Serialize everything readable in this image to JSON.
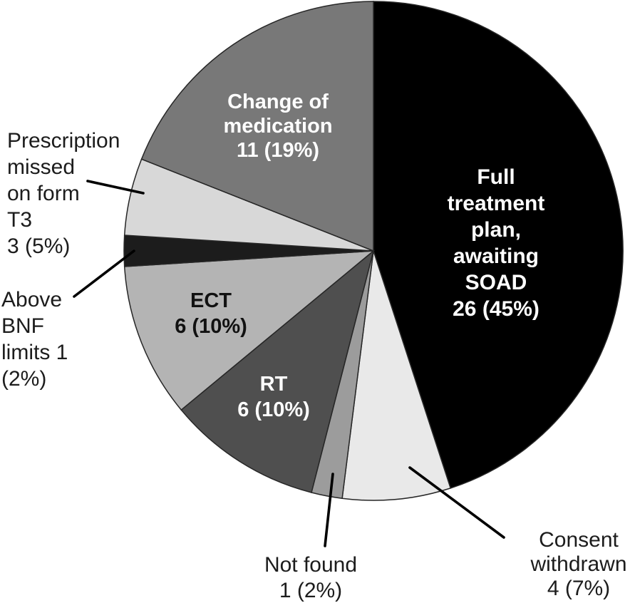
{
  "figure": {
    "background": "#ffffff"
  },
  "chart_data": {
    "type": "pie",
    "title": "",
    "value_format": "count (percent)",
    "total": 58,
    "start_angle_deg": 0,
    "direction": "clockwise",
    "legend": "none",
    "outline_color": "#262626",
    "slices": [
      {
        "id": "full-treatment",
        "label": "Full treatment plan, awaiting SOAD",
        "value": 26,
        "pct": 45,
        "color": "#000000",
        "text_color": "#ffffff",
        "display": "Full treatment\nplan, awaiting\nSOAD\n26 (45%)"
      },
      {
        "id": "consent-withdrawn",
        "label": "Consent withdrawn",
        "value": 4,
        "pct": 7,
        "color": "#e9e9e9",
        "text_color": "#1c1c1c",
        "display": "Consent\nwithdrawn\n4 (7%)"
      },
      {
        "id": "not-found",
        "label": "Not found",
        "value": 1,
        "pct": 2,
        "color": "#9c9c9c",
        "text_color": "#1c1c1c",
        "display": "Not found\n1 (2%)"
      },
      {
        "id": "rt",
        "label": "RT",
        "value": 6,
        "pct": 10,
        "color": "#4f4f4f",
        "text_color": "#ffffff",
        "display": "RT\n6 (10%)"
      },
      {
        "id": "ect",
        "label": "ECT",
        "value": 6,
        "pct": 10,
        "color": "#b4b4b4",
        "text_color": "#111111",
        "display": "ECT\n6 (10%)"
      },
      {
        "id": "above-bnf",
        "label": "Above BNF limits",
        "value": 1,
        "pct": 2,
        "color": "#1c1c1c",
        "text_color": "#1c1c1c",
        "display": "Above\nBNF\nlimits 1\n(2%)"
      },
      {
        "id": "prescription-missed",
        "label": "Prescription missed on form T3",
        "value": 3,
        "pct": 5,
        "color": "#d8d8d8",
        "text_color": "#1c1c1c",
        "display": "Prescription\nmissed\non form\nT3\n3 (5%)"
      },
      {
        "id": "change-medication",
        "label": "Change of medication",
        "value": 11,
        "pct": 19,
        "color": "#787878",
        "text_color": "#ffffff",
        "display": "Change of\nmedication\n11 (19%)"
      }
    ]
  }
}
